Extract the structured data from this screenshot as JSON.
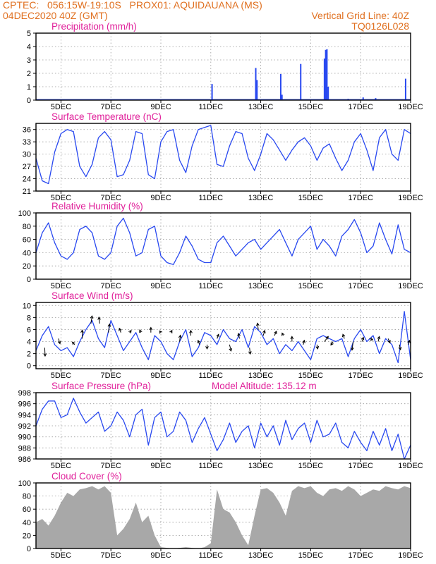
{
  "header": {
    "line1_left": "CPTEC:   056:15W-19:10S   PROX01: AQUIDAUANA (MS)",
    "line2_left": "04DEC2020 40Z (GMT)",
    "line2_right": "Vertical Grid Line: 40Z",
    "line3_right": "TQ0126L028"
  },
  "colors": {
    "header": "#e07020",
    "title": "#e0209a",
    "series": "#2848f0",
    "cloud": "#a8a8a8",
    "arrow": "#000000",
    "grid": "#999999"
  },
  "x_axis": {
    "start_day": 4,
    "end_day": 19,
    "ticks": [
      {
        "day": 5,
        "label": "5DEC"
      },
      {
        "day": 7,
        "label": "7DEC"
      },
      {
        "day": 9,
        "label": "9DEC"
      },
      {
        "day": 11,
        "label": "11DEC"
      },
      {
        "day": 13,
        "label": "13DEC"
      },
      {
        "day": 15,
        "label": "15DEC"
      },
      {
        "day": 17,
        "label": "17DEC"
      },
      {
        "day": 19,
        "label": "19DEC"
      }
    ]
  },
  "chart_data": [
    {
      "key": "precip",
      "type": "bar",
      "title": "Precipitation (mm/h)",
      "ylim": [
        0,
        5
      ],
      "yticks": [
        0,
        1,
        2,
        3,
        4,
        5
      ],
      "grid": true,
      "x": [
        11.05,
        12.8,
        12.85,
        13.8,
        13.85,
        14.6,
        15.55,
        15.6,
        15.65,
        15.7,
        16.5,
        17.1,
        17.6,
        18.8
      ],
      "values": [
        1.2,
        2.4,
        1.5,
        1.95,
        0.4,
        2.7,
        3.1,
        3.75,
        3.8,
        1.0,
        0.1,
        0.2,
        0.15,
        1.6
      ]
    },
    {
      "key": "temp",
      "type": "line",
      "title": "Surface Temperature (nC)",
      "ylim": [
        21,
        37.5
      ],
      "yticks": [
        21,
        24,
        27,
        30,
        33,
        36
      ],
      "grid": true,
      "x": [
        4.0,
        4.25,
        4.5,
        4.75,
        5.0,
        5.25,
        5.5,
        5.75,
        6.0,
        6.25,
        6.5,
        6.75,
        7.0,
        7.25,
        7.5,
        7.75,
        8.0,
        8.25,
        8.5,
        8.75,
        9.0,
        9.25,
        9.5,
        9.75,
        10.0,
        10.25,
        10.5,
        10.75,
        11.0,
        11.25,
        11.5,
        11.75,
        12.0,
        12.25,
        12.5,
        12.75,
        13.0,
        13.25,
        13.5,
        13.75,
        14.0,
        14.25,
        14.5,
        14.75,
        15.0,
        15.25,
        15.5,
        15.75,
        16.0,
        16.25,
        16.5,
        16.75,
        17.0,
        17.25,
        17.5,
        17.75,
        18.0,
        18.25,
        18.5,
        18.75,
        19.0
      ],
      "values": [
        29.0,
        23.5,
        22.8,
        30.5,
        35.0,
        36.0,
        35.5,
        27.0,
        24.5,
        27.5,
        34.0,
        35.5,
        33.5,
        24.5,
        25.0,
        28.5,
        35.5,
        35.0,
        25.0,
        24.0,
        33.0,
        35.5,
        36.0,
        28.5,
        25.5,
        32.0,
        36.0,
        36.5,
        37.0,
        27.5,
        27.0,
        32.0,
        35.5,
        35.0,
        29.0,
        26.0,
        30.0,
        35.0,
        33.5,
        31.0,
        28.5,
        31.0,
        33.0,
        34.0,
        32.0,
        28.5,
        31.5,
        32.5,
        29.0,
        26.0,
        28.5,
        33.0,
        35.0,
        31.0,
        26.0,
        34.0,
        36.0,
        30.0,
        28.5,
        36.0,
        35.0
      ]
    },
    {
      "key": "rh",
      "type": "line",
      "title": "Relative Humidity (%)",
      "ylim": [
        0,
        100
      ],
      "yticks": [
        0,
        20,
        40,
        60,
        80,
        100
      ],
      "grid": true,
      "x": [
        4.0,
        4.25,
        4.5,
        4.75,
        5.0,
        5.25,
        5.5,
        5.75,
        6.0,
        6.25,
        6.5,
        6.75,
        7.0,
        7.25,
        7.5,
        7.75,
        8.0,
        8.25,
        8.5,
        8.75,
        9.0,
        9.25,
        9.5,
        9.75,
        10.0,
        10.25,
        10.5,
        10.75,
        11.0,
        11.25,
        11.5,
        11.75,
        12.0,
        12.25,
        12.5,
        12.75,
        13.0,
        13.25,
        13.5,
        13.75,
        14.0,
        14.25,
        14.5,
        14.75,
        15.0,
        15.25,
        15.5,
        15.75,
        16.0,
        16.25,
        16.5,
        16.75,
        17.0,
        17.25,
        17.5,
        17.75,
        18.0,
        18.25,
        18.5,
        18.75,
        19.0
      ],
      "values": [
        40.0,
        70.0,
        85.0,
        55.0,
        35.0,
        30.0,
        40.0,
        75.0,
        80.0,
        70.0,
        35.0,
        30.0,
        40.0,
        80.0,
        92.0,
        70.0,
        35.0,
        40.0,
        75.0,
        80.0,
        35.0,
        25.0,
        22.0,
        40.0,
        65.0,
        50.0,
        30.0,
        25.0,
        25.0,
        55.0,
        65.0,
        50.0,
        35.0,
        45.0,
        55.0,
        60.0,
        45.0,
        55.0,
        65.0,
        75.0,
        55.0,
        35.0,
        60.0,
        70.0,
        80.0,
        45.0,
        60.0,
        50.0,
        35.0,
        65.0,
        75.0,
        90.0,
        70.0,
        40.0,
        50.0,
        85.0,
        60.0,
        38.0,
        82.0,
        45.0,
        40.0
      ]
    },
    {
      "key": "wind",
      "type": "line",
      "title": "Surface Wind (m/s)",
      "ylim": [
        -0.5,
        10.5
      ],
      "yticks": [
        0,
        2,
        4,
        6,
        8,
        10
      ],
      "grid": true,
      "x": [
        4.0,
        4.25,
        4.5,
        4.75,
        5.0,
        5.25,
        5.5,
        5.75,
        6.0,
        6.25,
        6.5,
        6.75,
        7.0,
        7.25,
        7.5,
        7.75,
        8.0,
        8.25,
        8.5,
        8.75,
        9.0,
        9.25,
        9.5,
        9.75,
        10.0,
        10.25,
        10.5,
        10.75,
        11.0,
        11.25,
        11.5,
        11.75,
        12.0,
        12.25,
        12.5,
        12.75,
        13.0,
        13.25,
        13.5,
        13.75,
        14.0,
        14.25,
        14.5,
        14.75,
        15.0,
        15.25,
        15.5,
        15.75,
        16.0,
        16.25,
        16.5,
        16.75,
        17.0,
        17.25,
        17.5,
        17.75,
        18.0,
        18.25,
        18.5,
        18.75,
        19.0
      ],
      "values": [
        2.5,
        5.0,
        6.5,
        3.5,
        2.5,
        3.0,
        1.5,
        4.0,
        6.0,
        7.5,
        4.5,
        3.0,
        7.5,
        5.0,
        2.5,
        4.0,
        5.5,
        3.0,
        1.0,
        5.0,
        4.0,
        2.0,
        1.0,
        4.0,
        6.0,
        1.5,
        3.0,
        5.5,
        5.0,
        3.5,
        6.0,
        4.5,
        4.0,
        6.0,
        3.0,
        6.5,
        5.5,
        3.5,
        4.5,
        2.0,
        3.5,
        2.5,
        4.0,
        2.5,
        1.0,
        4.5,
        5.0,
        4.5,
        4.0,
        4.5,
        1.5,
        4.5,
        6.0,
        4.0,
        5.0,
        2.0,
        4.5,
        3.5,
        0.5,
        9.0,
        1.0
      ]
    },
    {
      "key": "pres",
      "type": "line",
      "title": "Surface Pressure (hPa)",
      "annotation": "Model Altitude: 135.12 m",
      "ylim": [
        986,
        998
      ],
      "yticks": [
        986,
        988,
        990,
        992,
        994,
        996,
        998
      ],
      "grid": true,
      "x": [
        4.0,
        4.25,
        4.5,
        4.75,
        5.0,
        5.25,
        5.5,
        5.75,
        6.0,
        6.25,
        6.5,
        6.75,
        7.0,
        7.25,
        7.5,
        7.75,
        8.0,
        8.25,
        8.5,
        8.75,
        9.0,
        9.25,
        9.5,
        9.75,
        10.0,
        10.25,
        10.5,
        10.75,
        11.0,
        11.25,
        11.5,
        11.75,
        12.0,
        12.25,
        12.5,
        12.75,
        13.0,
        13.25,
        13.5,
        13.75,
        14.0,
        14.25,
        14.5,
        14.75,
        15.0,
        15.25,
        15.5,
        15.75,
        16.0,
        16.25,
        16.5,
        16.75,
        17.0,
        17.25,
        17.5,
        17.75,
        18.0,
        18.25,
        18.5,
        18.75,
        19.0
      ],
      "values": [
        992.0,
        995.0,
        996.5,
        996.5,
        993.5,
        994.0,
        997.0,
        994.5,
        992.5,
        993.5,
        994.5,
        991.0,
        992.0,
        994.5,
        993.0,
        990.0,
        994.0,
        995.0,
        988.5,
        993.5,
        994.5,
        990.0,
        991.0,
        994.5,
        993.0,
        989.0,
        991.5,
        993.5,
        990.5,
        987.5,
        989.5,
        992.5,
        989.0,
        991.0,
        992.0,
        988.0,
        992.5,
        990.0,
        992.0,
        988.5,
        993.0,
        989.5,
        991.5,
        992.5,
        989.0,
        993.0,
        990.0,
        990.5,
        992.5,
        989.0,
        988.0,
        991.0,
        989.0,
        987.5,
        991.0,
        988.5,
        991.5,
        987.5,
        990.5,
        986.0,
        988.5
      ]
    },
    {
      "key": "cloud",
      "type": "area",
      "title": "Cloud Cover (%)",
      "ylim": [
        0,
        100
      ],
      "yticks": [
        0,
        20,
        40,
        60,
        80,
        100
      ],
      "grid": true,
      "x": [
        4.0,
        4.25,
        4.5,
        4.75,
        5.0,
        5.25,
        5.5,
        5.75,
        6.0,
        6.25,
        6.5,
        6.75,
        7.0,
        7.25,
        7.5,
        7.75,
        8.0,
        8.25,
        8.5,
        8.75,
        9.0,
        9.25,
        9.5,
        9.75,
        10.0,
        10.25,
        10.5,
        10.75,
        11.0,
        11.25,
        11.5,
        11.75,
        12.0,
        12.25,
        12.5,
        12.75,
        13.0,
        13.25,
        13.5,
        13.75,
        14.0,
        14.25,
        14.5,
        14.75,
        15.0,
        15.25,
        15.5,
        15.75,
        16.0,
        16.25,
        16.5,
        16.75,
        17.0,
        17.25,
        17.5,
        17.75,
        18.0,
        18.25,
        18.5,
        18.75,
        19.0
      ],
      "values": [
        40.0,
        45.0,
        35.0,
        50.0,
        70.0,
        85.0,
        80.0,
        90.0,
        92.0,
        95.0,
        90.0,
        95.0,
        85.0,
        20.0,
        30.0,
        45.0,
        70.0,
        40.0,
        50.0,
        20.0,
        2.0,
        1.0,
        0.0,
        1.0,
        2.0,
        1.0,
        0.0,
        2.0,
        8.0,
        90.0,
        60.0,
        55.0,
        40.0,
        20.0,
        5.0,
        50.0,
        90.0,
        92.0,
        85.0,
        70.0,
        50.0,
        88.0,
        95.0,
        92.0,
        95.0,
        85.0,
        80.0,
        90.0,
        92.0,
        88.0,
        95.0,
        90.0,
        80.0,
        85.0,
        90.0,
        88.0,
        95.0,
        92.0,
        90.0,
        95.0,
        92.0
      ]
    }
  ],
  "wind_arrows": [
    {
      "day": 4.35,
      "y": 3.0,
      "dx": 0.05,
      "dy": -2.0
    },
    {
      "day": 4.9,
      "y": 4.5,
      "dx": 0.2,
      "dy": -1.2
    },
    {
      "day": 5.55,
      "y": 3.5,
      "dx": -0.3,
      "dy": 0.6
    },
    {
      "day": 5.85,
      "y": 4.5,
      "dx": 0.0,
      "dy": 2.0
    },
    {
      "day": 6.2,
      "y": 7.0,
      "dx": 0.15,
      "dy": 1.8
    },
    {
      "day": 6.55,
      "y": 7.0,
      "dx": -0.1,
      "dy": 1.5
    },
    {
      "day": 6.9,
      "y": 5.5,
      "dx": 0.15,
      "dy": 2.0
    },
    {
      "day": 7.4,
      "y": 5.5,
      "dx": -0.2,
      "dy": 1.0
    },
    {
      "day": 7.75,
      "y": 5.5,
      "dx": 0.2,
      "dy": 0.5
    },
    {
      "day": 8.2,
      "y": 5.5,
      "dx": -0.15,
      "dy": 0.6
    },
    {
      "day": 8.6,
      "y": 5.5,
      "dx": 0.0,
      "dy": 1.2
    },
    {
      "day": 9.0,
      "y": 5.5,
      "dx": -0.15,
      "dy": 0.4
    },
    {
      "day": 9.4,
      "y": 5.5,
      "dx": 0.15,
      "dy": 0.5
    },
    {
      "day": 9.75,
      "y": 4.0,
      "dx": 0.1,
      "dy": 1.5
    },
    {
      "day": 10.2,
      "y": 5.0,
      "dx": 0.0,
      "dy": 1.2
    },
    {
      "day": 10.55,
      "y": 3.5,
      "dx": -0.2,
      "dy": 1.0
    },
    {
      "day": 10.85,
      "y": 3.5,
      "dx": 0.0,
      "dy": -1.0
    },
    {
      "day": 11.25,
      "y": 4.5,
      "dx": 0.2,
      "dy": 1.0
    },
    {
      "day": 11.75,
      "y": 3.5,
      "dx": 0.2,
      "dy": -1.5
    },
    {
      "day": 12.15,
      "y": 4.5,
      "dx": -0.15,
      "dy": 1.2
    },
    {
      "day": 12.55,
      "y": 3.0,
      "dx": 0.1,
      "dy": -1.5
    },
    {
      "day": 12.9,
      "y": 6.0,
      "dx": -0.1,
      "dy": 1.5
    },
    {
      "day": 13.1,
      "y": 5.0,
      "dx": 0.2,
      "dy": 1.2
    },
    {
      "day": 13.55,
      "y": 5.0,
      "dx": 0.25,
      "dy": 1.0
    },
    {
      "day": 13.9,
      "y": 5.0,
      "dx": -0.15,
      "dy": 0.6
    },
    {
      "day": 14.25,
      "y": 4.0,
      "dx": 0.0,
      "dy": 1.2
    },
    {
      "day": 14.7,
      "y": 3.5,
      "dx": 0.15,
      "dy": 1.0
    },
    {
      "day": 15.25,
      "y": 3.5,
      "dx": 0.1,
      "dy": -1.0
    },
    {
      "day": 15.55,
      "y": 4.0,
      "dx": 0.5,
      "dy": 1.2
    },
    {
      "day": 15.9,
      "y": 4.0,
      "dx": -0.3,
      "dy": -0.8
    },
    {
      "day": 16.35,
      "y": 4.5,
      "dx": -0.2,
      "dy": 1.0
    },
    {
      "day": 16.7,
      "y": 4.0,
      "dx": -0.15,
      "dy": -2.0
    },
    {
      "day": 17.05,
      "y": 4.0,
      "dx": 0.2,
      "dy": 1.0
    },
    {
      "day": 17.35,
      "y": 4.5,
      "dx": 0.45,
      "dy": -0.3
    },
    {
      "day": 17.7,
      "y": 4.0,
      "dx": 0.15,
      "dy": 1.2
    },
    {
      "day": 18.1,
      "y": 4.5,
      "dx": 0.25,
      "dy": -1.0
    },
    {
      "day": 18.55,
      "y": 3.5,
      "dx": 0.15,
      "dy": -1.2
    },
    {
      "day": 18.9,
      "y": 3.5,
      "dx": 0.2,
      "dy": 1.0
    }
  ]
}
